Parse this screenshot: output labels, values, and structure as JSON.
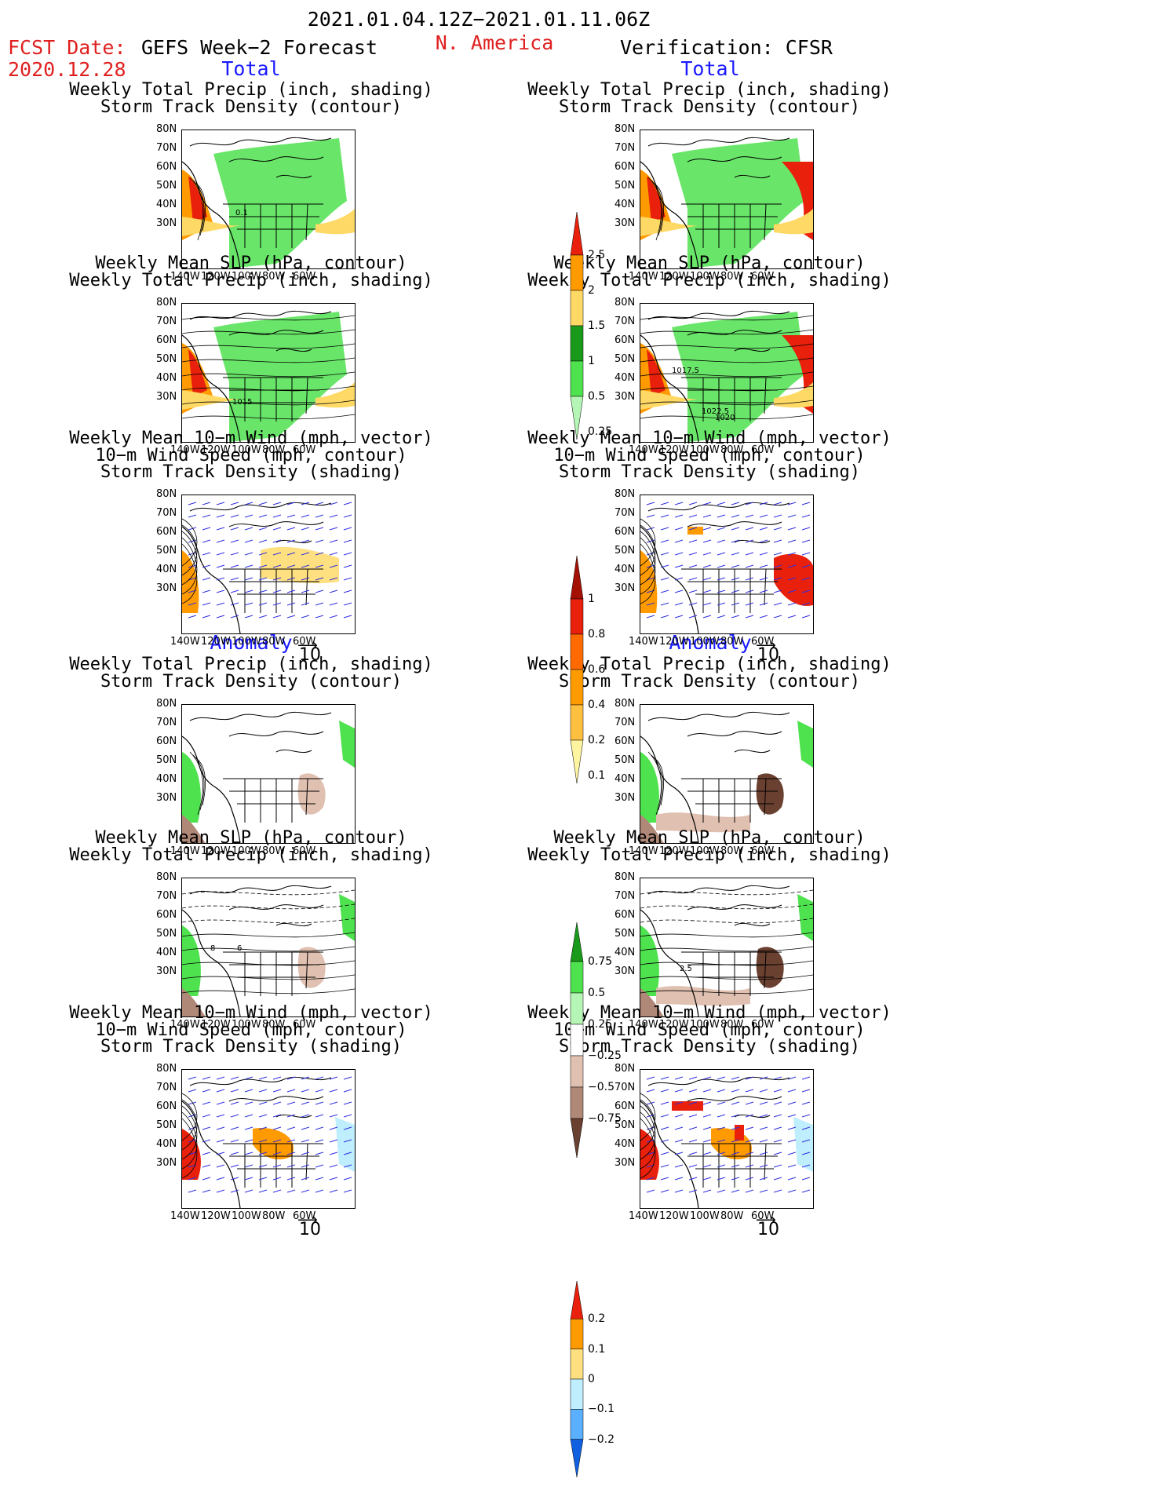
{
  "header": {
    "date_range": "2021.01.04.12Z−2021.01.11.06Z",
    "fcst_label": "FCST Date:",
    "fcst_date": "2020.12.28",
    "model": "GEFS Week−2 Forecast",
    "region": "N. America",
    "verification": "Verification: CFSR"
  },
  "sections": {
    "total": "Total",
    "anomaly": "Anomaly"
  },
  "titles": {
    "precip_track": [
      "Weekly Total Precip (inch, shading)",
      "Storm Track Density (contour)"
    ],
    "slp_precip": [
      "Weekly Mean SLP (hPa, contour)",
      "Weekly Total Precip (inch, shading)"
    ],
    "wind_track": [
      "Weekly Mean 10−m Wind (mph, vector)",
      "10−m Wind Speed (mph, contour)",
      "Storm Track Density (shading)"
    ]
  },
  "axes": {
    "lat_ticks": [
      "80N",
      "70N",
      "60N",
      "50N",
      "40N",
      "30N"
    ],
    "lon_ticks": [
      "140W",
      "120W",
      "100W",
      "80W",
      "60W"
    ]
  },
  "vector_ref": "10",
  "contour_labels": {
    "fcst_precip": "0.1",
    "fcst_slp": "1015",
    "obs_slp_a": "1017.5",
    "obs_slp_b": "1022.5",
    "obs_slp_c": "1020",
    "anom_slp_a": "8",
    "anom_slp_b": "6",
    "obs_anom_slp": "2.5"
  },
  "colorbars": {
    "precip": {
      "labels": [
        "2.5",
        "2",
        "1.5",
        "1",
        "0.5",
        "0.25"
      ],
      "colors": [
        "#e8200c",
        "#ff9a00",
        "#ffd966",
        "#1a9a1a",
        "#4fe24f",
        "#b5f5b5"
      ]
    },
    "track": {
      "labels": [
        "1",
        "0.8",
        "0.6",
        "0.4",
        "0.2",
        "0.1"
      ],
      "colors": [
        "#a51005",
        "#e8200c",
        "#ff6a00",
        "#ff9a00",
        "#ffc040",
        "#fff5a0"
      ]
    },
    "precip_anom": {
      "labels": [
        "0.75",
        "0.5",
        "0.25",
        "−0.25",
        "−0.5",
        "−0.75"
      ],
      "colors": [
        "#1a9a1a",
        "#4fe24f",
        "#b5f5b5",
        "#ffffff",
        "#e0c0b0",
        "#b08878",
        "#6a4030"
      ]
    },
    "track_anom": {
      "labels": [
        "0.2",
        "0.1",
        "0",
        "−0.1",
        "−0.2"
      ],
      "colors": [
        "#e8200c",
        "#ff9a00",
        "#ffe080",
        "#bfeeff",
        "#5ab0ff",
        "#1060e0"
      ]
    }
  }
}
